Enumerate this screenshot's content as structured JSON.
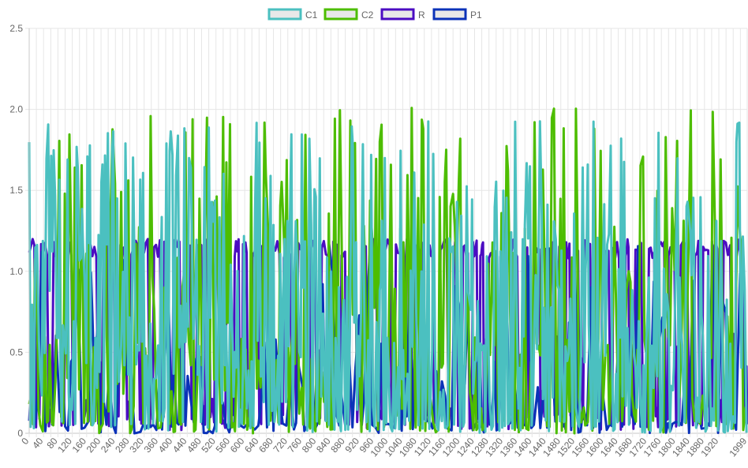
{
  "chart_data": {
    "type": "line",
    "legend_position": "top",
    "grid": true,
    "x": {
      "min": 0,
      "max": 1999,
      "tick_labels": [
        "0",
        "40",
        "80",
        "120",
        "160",
        "200",
        "240",
        "280",
        "320",
        "360",
        "400",
        "440",
        "480",
        "520",
        "560",
        "600",
        "640",
        "680",
        "720",
        "760",
        "800",
        "840",
        "880",
        "920",
        "960",
        "1000",
        "1040",
        "1080",
        "1120",
        "1160",
        "1200",
        "1240",
        "1280",
        "1320",
        "1360",
        "1400",
        "1440",
        "1480",
        "1520",
        "1560",
        "1600",
        "1640",
        "1680",
        "1720",
        "1760",
        "1800",
        "1840",
        "1880",
        "1920",
        "1999"
      ]
    },
    "y": {
      "min": 0,
      "max": 2.5,
      "tick_labels": [
        "2.5",
        "2.0",
        "1.5",
        "1.0",
        "0.5",
        "0"
      ]
    },
    "series": [
      {
        "name": "C1",
        "color": "#4bc0c0",
        "pattern": "irregular spikes between 0 and ~1.9",
        "range": [
          0,
          1.93
        ]
      },
      {
        "name": "C2",
        "color": "#4dbd00",
        "pattern": "irregular spikes between 0 and ~2.0",
        "range": [
          0,
          2.03
        ]
      },
      {
        "name": "R",
        "color": "#4b0cc2",
        "pattern": "oscillates between ~0 and ~1.2",
        "range": [
          0,
          1.2
        ]
      },
      {
        "name": "P1",
        "color": "#0b32b8",
        "pattern": "irregular spikes between 0 and ~1.47",
        "range": [
          0,
          1.47
        ]
      }
    ]
  }
}
